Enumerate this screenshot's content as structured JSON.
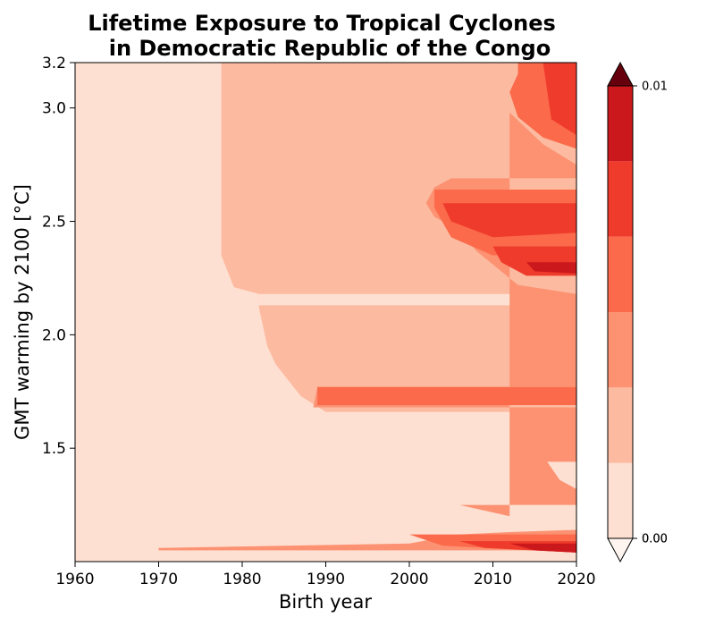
{
  "chart_data": {
    "type": "heatmap",
    "title_line1": "Lifetime Exposure to Tropical Cyclones",
    "title_line2": "in Democratic Republic of the Congo",
    "xlabel": "Birth year",
    "ylabel": "GMT warming by 2100 [°C]",
    "xlim": [
      1960,
      2020
    ],
    "ylim": [
      1.0,
      3.2
    ],
    "x_ticks": [
      1960,
      1970,
      1980,
      1990,
      2000,
      2010,
      2020
    ],
    "y_ticks": [
      1.5,
      2.0,
      2.5,
      3.0,
      3.2
    ],
    "y_tick_labels": [
      "1.5",
      "2.0",
      "2.5",
      "3.0",
      "3.2"
    ],
    "colorbar": {
      "extend": "both",
      "top_label": "0.01",
      "bottom_labels": [
        "0.00",
        "0.00"
      ],
      "levels": 6,
      "colors": [
        "#fee0d2",
        "#fcbba1",
        "#fc9272",
        "#fb6a4a",
        "#ef3b2c",
        "#cb181d",
        "#a50f15",
        "#67000d"
      ],
      "under_color": "#fff5f0",
      "over_color": "#67000d"
    },
    "regions": [
      {
        "level": 1,
        "points": [
          [
            1978,
            3.2
          ],
          [
            2020,
            3.2
          ],
          [
            2020,
            1.66
          ],
          [
            1990,
            1.66
          ],
          [
            1987,
            1.73
          ],
          [
            1984,
            1.87
          ],
          [
            1983,
            1.95
          ],
          [
            1982,
            2.12
          ],
          [
            1982,
            2.18
          ],
          [
            1979,
            2.21
          ],
          [
            1977.5,
            2.35
          ],
          [
            1977.5,
            3.2
          ]
        ]
      },
      {
        "level": 0,
        "points": [
          [
            1982,
            2.18
          ],
          [
            2020,
            2.18
          ],
          [
            2020,
            2.13
          ],
          [
            1982,
            2.13
          ]
        ]
      },
      {
        "level": 2,
        "points": [
          [
            2007,
            3.2
          ],
          [
            2020,
            3.2
          ],
          [
            2020,
            2.69
          ],
          [
            2005,
            2.69
          ],
          [
            2003,
            2.65
          ],
          [
            2002,
            2.58
          ],
          [
            2003,
            2.52
          ],
          [
            2006,
            2.46
          ],
          [
            2008,
            2.37
          ],
          [
            2013,
            2.22
          ],
          [
            2020,
            2.18
          ],
          [
            2020,
            1.77
          ],
          [
            1989,
            1.77
          ],
          [
            1988.5,
            1.68
          ],
          [
            2020,
            1.68
          ],
          [
            2020,
            1.25
          ],
          [
            2006,
            1.25
          ],
          [
            2012,
            1.2
          ],
          [
            2012,
            2.98
          ],
          [
            2016,
            2.84
          ],
          [
            2020,
            2.75
          ],
          [
            2020,
            3.2
          ]
        ]
      },
      {
        "level": 2,
        "points": [
          [
            1970,
            1.05
          ],
          [
            2020,
            1.05
          ],
          [
            2020,
            1.14
          ],
          [
            2012,
            1.13
          ],
          [
            2006,
            1.12
          ],
          [
            2000,
            1.08
          ],
          [
            1970,
            1.06
          ]
        ]
      },
      {
        "level": 0,
        "points": [
          [
            2016.5,
            1.44
          ],
          [
            2020,
            1.44
          ],
          [
            2020,
            1.32
          ],
          [
            2018,
            1.36
          ]
        ]
      },
      {
        "level": 3,
        "points": [
          [
            2013,
            3.2
          ],
          [
            2020,
            3.2
          ],
          [
            2020,
            2.82
          ],
          [
            2016,
            2.87
          ],
          [
            2013,
            2.96
          ],
          [
            2012,
            3.07
          ],
          [
            2013,
            3.15
          ]
        ]
      },
      {
        "level": 3,
        "points": [
          [
            2003,
            2.64
          ],
          [
            2020,
            2.64
          ],
          [
            2020,
            2.38
          ],
          [
            2010,
            2.35
          ],
          [
            2005,
            2.43
          ],
          [
            2003,
            2.56
          ]
        ]
      },
      {
        "level": 3,
        "points": [
          [
            1989,
            1.77
          ],
          [
            2020,
            1.77
          ],
          [
            2020,
            1.69
          ],
          [
            1989,
            1.69
          ]
        ]
      },
      {
        "level": 3,
        "points": [
          [
            2000,
            1.12
          ],
          [
            2020,
            1.12
          ],
          [
            2020,
            1.04
          ],
          [
            2004,
            1.07
          ]
        ]
      },
      {
        "level": 4,
        "points": [
          [
            2016,
            3.2
          ],
          [
            2020,
            3.2
          ],
          [
            2020,
            2.88
          ],
          [
            2017,
            2.95
          ]
        ]
      },
      {
        "level": 4,
        "points": [
          [
            2004,
            2.58
          ],
          [
            2020,
            2.58
          ],
          [
            2020,
            2.45
          ],
          [
            2010,
            2.43
          ],
          [
            2005,
            2.5
          ]
        ]
      },
      {
        "level": 4,
        "points": [
          [
            2010,
            2.39
          ],
          [
            2020,
            2.39
          ],
          [
            2020,
            2.26
          ],
          [
            2014,
            2.26
          ],
          [
            2011,
            2.32
          ]
        ]
      },
      {
        "level": 4,
        "points": [
          [
            2006,
            1.09
          ],
          [
            2020,
            1.09
          ],
          [
            2020,
            1.04
          ],
          [
            2009,
            1.06
          ]
        ]
      },
      {
        "level": 5,
        "points": [
          [
            2014,
            2.32
          ],
          [
            2020,
            2.32
          ],
          [
            2020,
            2.27
          ],
          [
            2015,
            2.28
          ]
        ]
      },
      {
        "level": 5,
        "points": [
          [
            2012,
            1.08
          ],
          [
            2020,
            1.08
          ],
          [
            2020,
            1.04
          ],
          [
            2015,
            1.05
          ]
        ]
      }
    ]
  }
}
